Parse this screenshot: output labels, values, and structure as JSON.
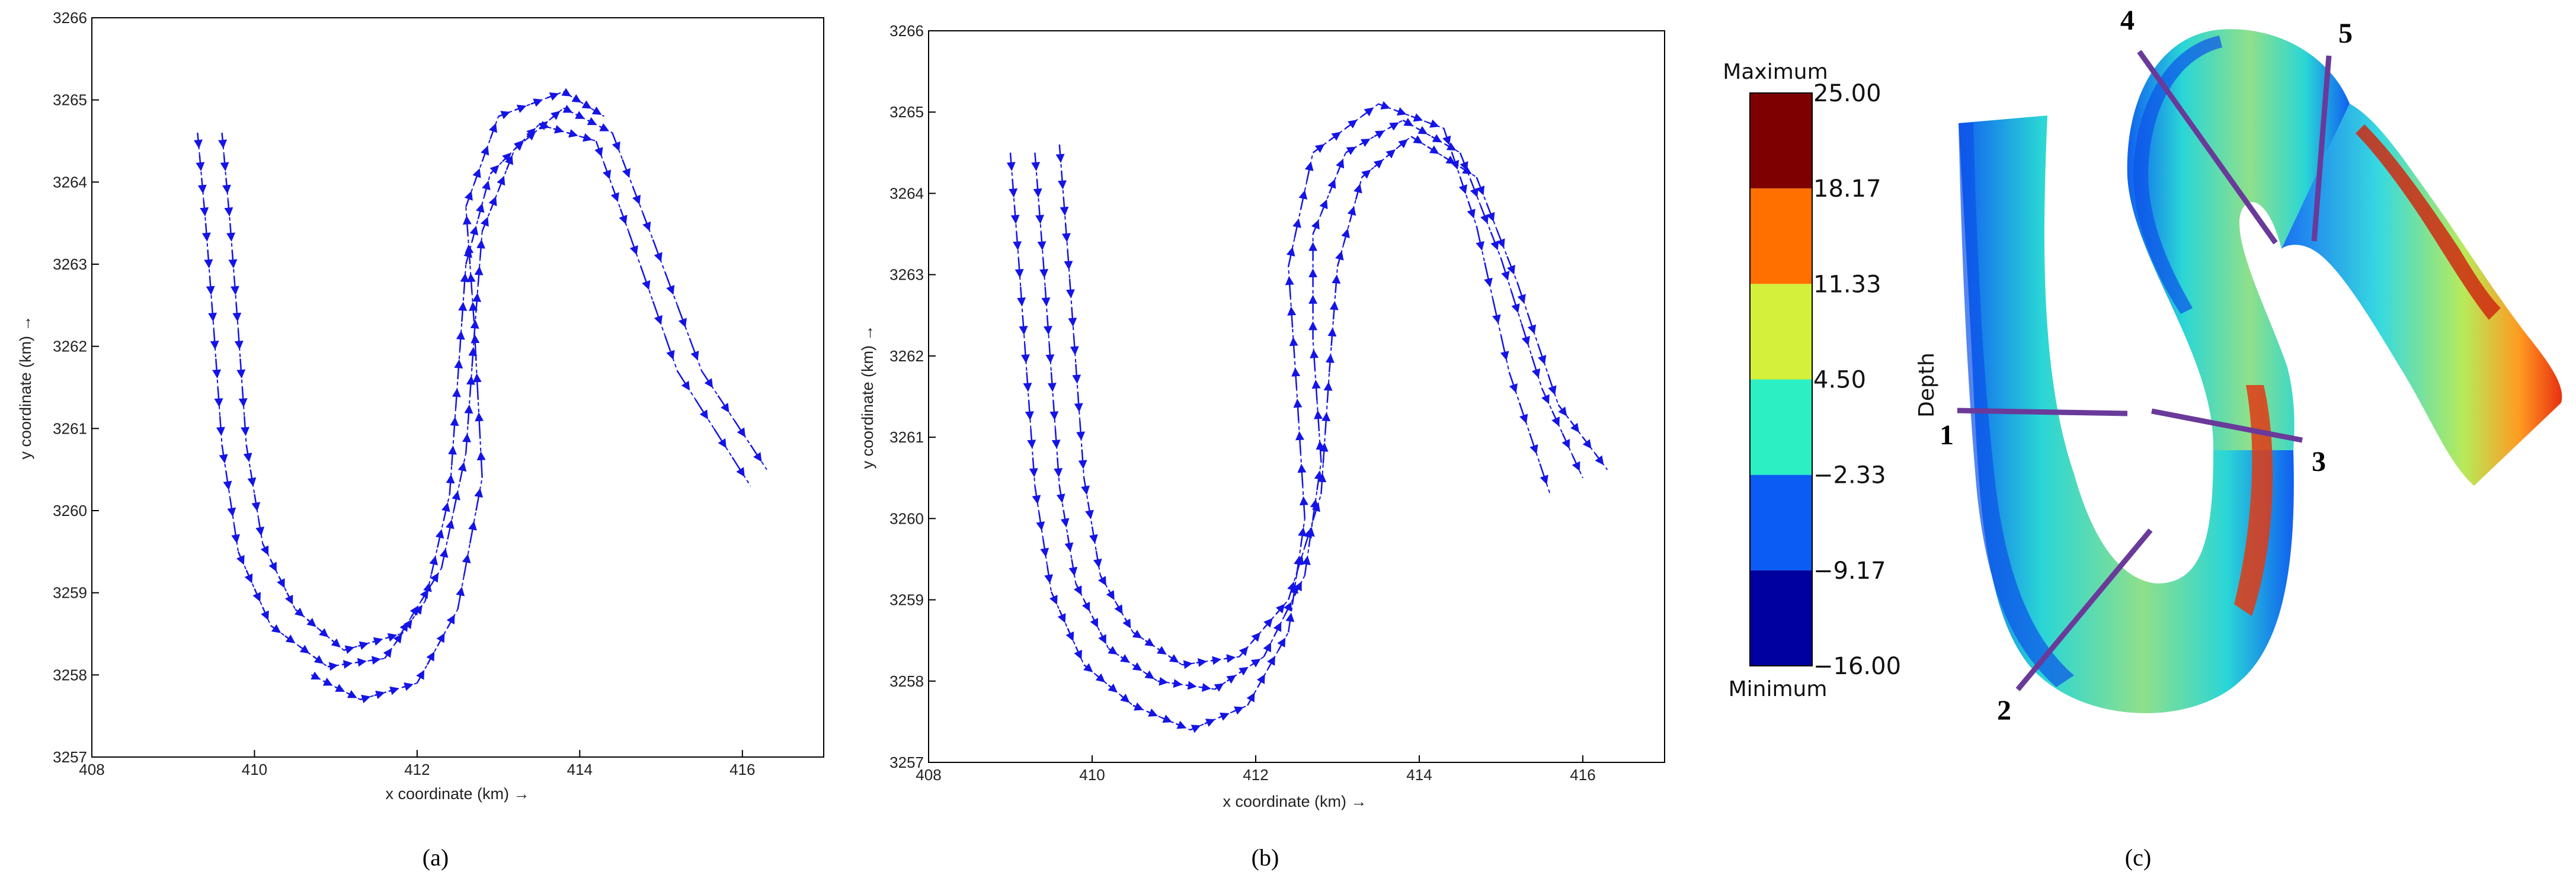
{
  "panels": [
    {
      "id": "a",
      "caption": "(a)",
      "chart_data": {
        "type": "quiver",
        "xlabel": "x coordinate (km) →",
        "ylabel": "y coordinate (km) →",
        "xlim": [
          408,
          417
        ],
        "ylim": [
          3257,
          3266
        ],
        "x_ticks": [
          "408",
          "410",
          "412",
          "414",
          "416"
        ],
        "y_ticks": [
          "3257",
          "3258",
          "3259",
          "3260",
          "3261",
          "3262",
          "3263",
          "3264",
          "3265",
          "3266"
        ],
        "vector_color": "#1414e6",
        "series": [
          {
            "values": [
              [
                409.3,
                3264.6
              ],
              [
                409.4,
                3263.5
              ],
              [
                409.5,
                3262.2
              ],
              [
                409.6,
                3260.8
              ],
              [
                409.8,
                3259.5
              ],
              [
                410.2,
                3258.6
              ],
              [
                410.9,
                3258.1
              ],
              [
                411.6,
                3258.2
              ],
              [
                412.1,
                3258.9
              ],
              [
                412.4,
                3260.2
              ],
              [
                412.5,
                3261.6
              ],
              [
                412.6,
                3263.0
              ],
              [
                412.9,
                3264.1
              ],
              [
                413.5,
                3264.7
              ],
              [
                414.2,
                3264.5
              ],
              [
                414.6,
                3263.4
              ],
              [
                415.2,
                3261.7
              ],
              [
                416.1,
                3260.3
              ]
            ]
          },
          {
            "values": [
              [
                409.6,
                3264.6
              ],
              [
                409.7,
                3263.5
              ],
              [
                409.8,
                3262.2
              ],
              [
                409.9,
                3260.8
              ],
              [
                410.1,
                3259.6
              ],
              [
                410.5,
                3258.8
              ],
              [
                411.1,
                3258.3
              ],
              [
                411.8,
                3258.5
              ],
              [
                412.3,
                3259.3
              ],
              [
                412.6,
                3260.7
              ],
              [
                412.7,
                3262.1
              ],
              [
                412.8,
                3263.4
              ],
              [
                413.2,
                3264.4
              ],
              [
                413.8,
                3264.9
              ],
              [
                414.4,
                3264.6
              ],
              [
                414.9,
                3263.3
              ],
              [
                415.5,
                3261.7
              ],
              [
                416.3,
                3260.5
              ]
            ]
          },
          {
            "values": [
              [
                410.7,
                3258.0
              ],
              [
                411.3,
                3257.7
              ],
              [
                412.0,
                3257.9
              ],
              [
                412.5,
                3258.8
              ],
              [
                412.8,
                3260.4
              ],
              [
                412.7,
                3262.3
              ],
              [
                412.6,
                3263.7
              ],
              [
                413.0,
                3264.8
              ],
              [
                413.8,
                3265.1
              ],
              [
                414.3,
                3264.8
              ]
            ]
          }
        ]
      }
    },
    {
      "id": "b",
      "caption": "(b)",
      "chart_data": {
        "type": "quiver",
        "xlabel": "x coordinate (km) →",
        "ylabel": "y coordinate (km) →",
        "xlim": [
          408,
          417
        ],
        "ylim": [
          3257,
          3266
        ],
        "x_ticks": [
          "408",
          "410",
          "412",
          "414",
          "416"
        ],
        "y_ticks": [
          "3257",
          "3258",
          "3259",
          "3260",
          "3261",
          "3262",
          "3263",
          "3264",
          "3265",
          "3266"
        ],
        "vector_color": "#1414e6",
        "series": [
          {
            "values": [
              [
                409.0,
                3264.5
              ],
              [
                409.1,
                3263.2
              ],
              [
                409.2,
                3261.8
              ],
              [
                409.3,
                3260.4
              ],
              [
                409.5,
                3259.1
              ],
              [
                409.9,
                3258.2
              ],
              [
                410.5,
                3257.7
              ],
              [
                411.2,
                3257.4
              ],
              [
                411.9,
                3257.7
              ],
              [
                412.4,
                3258.6
              ],
              [
                412.6,
                3260.0
              ],
              [
                412.5,
                3261.6
              ],
              [
                412.4,
                3263.1
              ],
              [
                412.7,
                3264.5
              ],
              [
                413.5,
                3265.1
              ],
              [
                414.3,
                3264.8
              ],
              [
                414.7,
                3263.6
              ],
              [
                415.1,
                3261.8
              ],
              [
                415.6,
                3260.3
              ]
            ]
          },
          {
            "values": [
              [
                409.3,
                3264.5
              ],
              [
                409.4,
                3263.2
              ],
              [
                409.5,
                3261.8
              ],
              [
                409.6,
                3260.4
              ],
              [
                409.8,
                3259.2
              ],
              [
                410.2,
                3258.4
              ],
              [
                410.8,
                3258.0
              ],
              [
                411.5,
                3257.9
              ],
              [
                412.1,
                3258.3
              ],
              [
                412.6,
                3259.3
              ],
              [
                412.8,
                3260.7
              ],
              [
                412.7,
                3262.2
              ],
              [
                412.7,
                3263.5
              ],
              [
                413.1,
                3264.5
              ],
              [
                413.8,
                3264.9
              ],
              [
                414.5,
                3264.5
              ],
              [
                415.0,
                3263.2
              ],
              [
                415.5,
                3261.6
              ],
              [
                416.0,
                3260.5
              ]
            ]
          },
          {
            "values": [
              [
                409.6,
                3264.6
              ],
              [
                409.7,
                3263.3
              ],
              [
                409.8,
                3261.9
              ],
              [
                409.9,
                3260.5
              ],
              [
                410.1,
                3259.3
              ],
              [
                410.5,
                3258.6
              ],
              [
                411.1,
                3258.2
              ],
              [
                411.8,
                3258.3
              ],
              [
                412.4,
                3259.0
              ],
              [
                412.8,
                3260.3
              ],
              [
                412.9,
                3261.8
              ],
              [
                413.0,
                3263.1
              ],
              [
                413.3,
                3264.2
              ],
              [
                413.9,
                3264.7
              ],
              [
                414.7,
                3264.2
              ],
              [
                415.2,
                3262.9
              ],
              [
                415.7,
                3261.4
              ],
              [
                416.3,
                3260.6
              ]
            ]
          }
        ]
      }
    },
    {
      "id": "c",
      "caption": "(c)",
      "colorbar": {
        "title": "Depth",
        "top_label": "Maximum",
        "bottom_label": "Minimum",
        "levels": [
          {
            "label": "25.00",
            "color": "#7f0000"
          },
          {
            "label": "18.17",
            "color": "#ff7000"
          },
          {
            "label": "11.33",
            "color": "#d4f03a"
          },
          {
            "label": "4.50",
            "color": "#2cf0c4"
          },
          {
            "label": "−2.33",
            "color": "#0a5cf5"
          },
          {
            "label": "−9.17",
            "color": "#0000a0"
          },
          {
            "label": "−16.00",
            "color": ""
          }
        ]
      },
      "sections": [
        "1",
        "2",
        "3",
        "4",
        "5"
      ],
      "section_line_color": "#6a3a9a"
    }
  ]
}
